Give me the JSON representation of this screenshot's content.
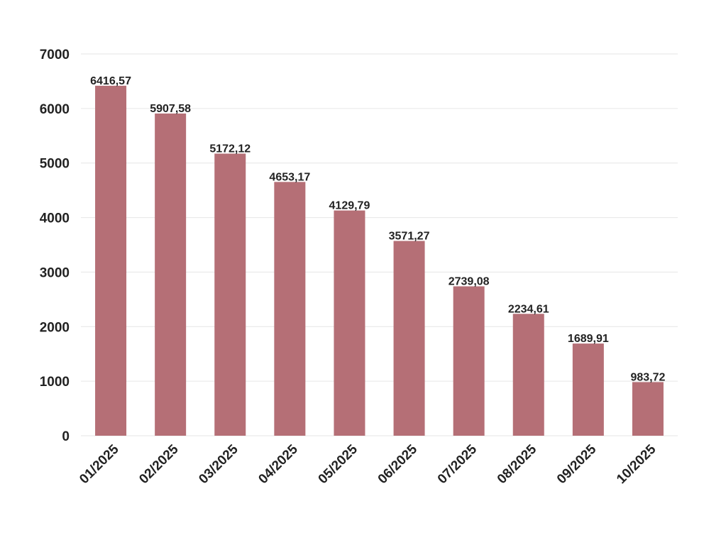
{
  "chart_data": {
    "type": "bar",
    "categories": [
      "01/2025",
      "02/2025",
      "03/2025",
      "04/2025",
      "05/2025",
      "06/2025",
      "07/2025",
      "08/2025",
      "09/2025",
      "10/2025"
    ],
    "values": [
      6416.57,
      5907.58,
      5172.12,
      4653.17,
      4129.79,
      3571.27,
      2739.08,
      2234.61,
      1689.91,
      983.72
    ],
    "data_labels": [
      "6416,57",
      "5907,58",
      "5172,12",
      "4653,17",
      "4129,79",
      "3571,27",
      "2739,08",
      "2234,61",
      "1689,91",
      "983,72"
    ],
    "yticks": [
      "0",
      "1000",
      "2000",
      "3000",
      "4000",
      "5000",
      "6000",
      "7000"
    ],
    "ylim": [
      0,
      7000
    ],
    "title": "",
    "xlabel": "",
    "ylabel": "",
    "grid": true,
    "legend": "none",
    "bar_color": "#b56f76"
  }
}
